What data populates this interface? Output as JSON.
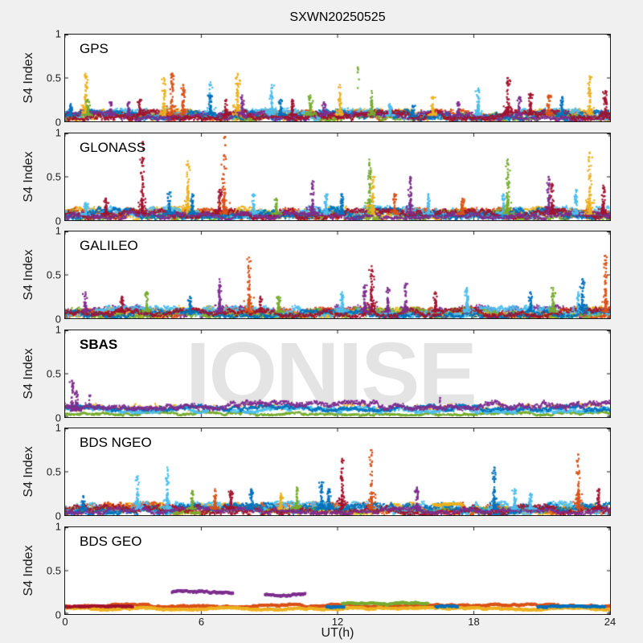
{
  "title": "SXWN20250525",
  "watermark": "IONISE",
  "background_color": "#f0f0f0",
  "axis_color": "#1a1a1a",
  "palette": {
    "blue": "#0072BD",
    "orange": "#D95319",
    "yellow": "#EDB120",
    "purple": "#7E2F8E",
    "green": "#77AC30",
    "cyan": "#4DBEEE",
    "darkred": "#A2142F"
  },
  "chart_data": {
    "type": "scatter",
    "title": "SXWN20250525",
    "x": {
      "label": "UT(h)",
      "range": [
        0,
        24
      ],
      "ticks": [
        0,
        6,
        12,
        18,
        24
      ]
    },
    "y": {
      "label": "S4 Index",
      "range": [
        0,
        1
      ],
      "ticks": [
        0,
        0.5,
        1
      ]
    },
    "grid": false,
    "legend": "none",
    "panels": [
      {
        "label": "GPS",
        "bold": false,
        "baseline": [
          [
            "yellow",
            0.07,
            0.05,
            0.15
          ],
          [
            "orange",
            0.065,
            0.05,
            0.2
          ],
          [
            "green",
            0.05,
            0.035,
            0.3
          ],
          [
            "cyan",
            0.08,
            0.05,
            0.15
          ],
          [
            "blue",
            0.07,
            0.045,
            0.2
          ],
          [
            "purple",
            0.06,
            0.04,
            0.3
          ],
          [
            "darkred",
            0.07,
            0.045,
            0.2
          ]
        ],
        "spikes": [
          [
            0.25,
            0.2,
            "blue"
          ],
          [
            0.9,
            0.55,
            "yellow"
          ],
          [
            1.0,
            0.25,
            "green"
          ],
          [
            2.0,
            0.22,
            "purple"
          ],
          [
            2.8,
            0.22,
            "purple"
          ],
          [
            3.3,
            0.25,
            "darkred"
          ],
          [
            4.35,
            0.5,
            "yellow"
          ],
          [
            4.7,
            0.55,
            "orange"
          ],
          [
            5.2,
            0.42,
            "orange"
          ],
          [
            6.4,
            0.45,
            "cyan"
          ],
          [
            6.4,
            0.3,
            "blue"
          ],
          [
            7.1,
            0.25,
            "darkred"
          ],
          [
            7.6,
            0.55,
            "yellow"
          ],
          [
            7.8,
            0.3,
            "purple"
          ],
          [
            9.1,
            0.42,
            "cyan"
          ],
          [
            9.5,
            0.25,
            "blue"
          ],
          [
            10.0,
            0.25,
            "darkred"
          ],
          [
            10.8,
            0.3,
            "green"
          ],
          [
            11.4,
            0.22,
            "purple"
          ],
          [
            12.1,
            0.42,
            "yellow"
          ],
          [
            13.5,
            0.35,
            "green"
          ],
          [
            14.3,
            0.2,
            "cyan"
          ],
          [
            15.3,
            0.18,
            "blue"
          ],
          [
            16.2,
            0.28,
            "yellow"
          ],
          [
            17.3,
            0.22,
            "purple"
          ],
          [
            18.2,
            0.38,
            "cyan"
          ],
          [
            19.5,
            0.5,
            "darkred"
          ],
          [
            20.0,
            0.28,
            "purple"
          ],
          [
            20.5,
            0.32,
            "darkred"
          ],
          [
            21.3,
            0.3,
            "orange"
          ],
          [
            21.9,
            0.28,
            "blue"
          ],
          [
            23.1,
            0.52,
            "yellow"
          ],
          [
            23.8,
            0.35,
            "darkred"
          ]
        ],
        "dots": [
          [
            12.9,
            0.62,
            "green"
          ]
        ],
        "segments": []
      },
      {
        "label": "GLONASS",
        "bold": false,
        "baseline": [
          [
            "yellow",
            0.08,
            0.055,
            0.15
          ],
          [
            "orange",
            0.07,
            0.05,
            0.15
          ],
          [
            "green",
            0.06,
            0.045,
            0.25
          ],
          [
            "cyan",
            0.085,
            0.055,
            0.15
          ],
          [
            "blue",
            0.08,
            0.05,
            0.15
          ],
          [
            "darkred",
            0.07,
            0.045,
            0.2
          ],
          [
            "purple",
            0.05,
            0.035,
            0.3
          ]
        ],
        "spikes": [
          [
            0.9,
            0.2,
            "cyan"
          ],
          [
            1.8,
            0.25,
            "darkred"
          ],
          [
            3.4,
            0.72,
            "darkred"
          ],
          [
            4.6,
            0.32,
            "blue"
          ],
          [
            5.4,
            0.68,
            "yellow"
          ],
          [
            5.6,
            0.3,
            "blue"
          ],
          [
            6.8,
            0.35,
            "darkred"
          ],
          [
            7.0,
            0.75,
            "orange"
          ],
          [
            8.3,
            0.3,
            "cyan"
          ],
          [
            9.3,
            0.25,
            "green"
          ],
          [
            10.9,
            0.45,
            "purple"
          ],
          [
            11.5,
            0.3,
            "cyan"
          ],
          [
            12.2,
            0.3,
            "blue"
          ],
          [
            13.4,
            0.7,
            "green"
          ],
          [
            13.55,
            0.5,
            "yellow"
          ],
          [
            14.5,
            0.3,
            "orange"
          ],
          [
            15.2,
            0.5,
            "purple"
          ],
          [
            16.0,
            0.3,
            "cyan"
          ],
          [
            17.5,
            0.25,
            "orange"
          ],
          [
            19.3,
            0.3,
            "cyan"
          ],
          [
            19.5,
            0.7,
            "green"
          ],
          [
            21.3,
            0.5,
            "purple"
          ],
          [
            21.45,
            0.42,
            "darkred"
          ],
          [
            22.5,
            0.35,
            "cyan"
          ],
          [
            23.1,
            0.78,
            "yellow"
          ],
          [
            23.7,
            0.4,
            "darkred"
          ]
        ],
        "dots": [
          [
            3.45,
            0.9,
            "darkred"
          ],
          [
            7.05,
            0.96,
            "orange"
          ]
        ],
        "segments": []
      },
      {
        "label": "GALILEO",
        "bold": false,
        "baseline": [
          [
            "purple",
            0.075,
            0.055,
            0.12
          ],
          [
            "orange",
            0.06,
            0.045,
            0.2
          ],
          [
            "yellow",
            0.07,
            0.05,
            0.18
          ],
          [
            "green",
            0.06,
            0.045,
            0.2
          ],
          [
            "cyan",
            0.075,
            0.05,
            0.18
          ],
          [
            "blue",
            0.05,
            0.035,
            0.3
          ],
          [
            "darkred",
            0.06,
            0.04,
            0.25
          ]
        ],
        "spikes": [
          [
            0.9,
            0.3,
            "purple"
          ],
          [
            2.5,
            0.25,
            "darkred"
          ],
          [
            3.6,
            0.3,
            "green"
          ],
          [
            5.5,
            0.25,
            "blue"
          ],
          [
            6.8,
            0.45,
            "purple"
          ],
          [
            8.1,
            0.7,
            "orange"
          ],
          [
            8.6,
            0.25,
            "darkred"
          ],
          [
            9.4,
            0.25,
            "green"
          ],
          [
            12.2,
            0.3,
            "cyan"
          ],
          [
            13.5,
            0.6,
            "darkred"
          ],
          [
            13.2,
            0.38,
            "purple"
          ],
          [
            14.2,
            0.35,
            "purple"
          ],
          [
            15.0,
            0.4,
            "purple"
          ],
          [
            16.3,
            0.3,
            "darkred"
          ],
          [
            17.7,
            0.35,
            "cyan"
          ],
          [
            20.5,
            0.3,
            "blue"
          ],
          [
            21.5,
            0.35,
            "green"
          ],
          [
            22.6,
            0.3,
            "cyan"
          ],
          [
            22.8,
            0.45,
            "blue"
          ],
          [
            23.8,
            0.72,
            "orange"
          ]
        ],
        "dots": [],
        "segments": []
      },
      {
        "label": "SBAS",
        "bold": true,
        "baseline": [
          [
            "yellow",
            0.115,
            0.03,
            0.75
          ],
          [
            "green",
            0.04,
            0.018,
            0.2
          ],
          [
            "cyan",
            0.085,
            0.03,
            0.1
          ],
          [
            "blue",
            0.105,
            0.03,
            0.15
          ],
          [
            "purple",
            0.135,
            0.04,
            0.12
          ]
        ],
        "spikes": [
          [
            0.3,
            0.42,
            "purple"
          ],
          [
            0.5,
            0.3,
            "purple"
          ]
        ],
        "dots": [
          [
            1.1,
            0.25,
            "purple"
          ],
          [
            16.5,
            0.22,
            "purple"
          ]
        ],
        "segments": []
      },
      {
        "label": "BDS NGEO",
        "bold": false,
        "baseline": [
          [
            "yellow",
            0.075,
            0.05,
            0.15
          ],
          [
            "orange",
            0.08,
            0.05,
            0.15
          ],
          [
            "green",
            0.05,
            0.03,
            0.35
          ],
          [
            "cyan",
            0.08,
            0.055,
            0.15
          ],
          [
            "blue",
            0.07,
            0.05,
            0.2
          ],
          [
            "darkred",
            0.06,
            0.045,
            0.25
          ],
          [
            "purple",
            0.05,
            0.03,
            0.4
          ]
        ],
        "spikes": [
          [
            0.8,
            0.22,
            "blue"
          ],
          [
            3.2,
            0.45,
            "cyan"
          ],
          [
            4.5,
            0.55,
            "cyan"
          ],
          [
            5.6,
            0.28,
            "green"
          ],
          [
            6.6,
            0.3,
            "orange"
          ],
          [
            7.3,
            0.28,
            "darkred"
          ],
          [
            8.2,
            0.3,
            "blue"
          ],
          [
            9.5,
            0.25,
            "yellow"
          ],
          [
            10.2,
            0.32,
            "green"
          ],
          [
            11.3,
            0.38,
            "blue"
          ],
          [
            11.6,
            0.3,
            "blue"
          ],
          [
            12.2,
            0.65,
            "darkred"
          ],
          [
            13.5,
            0.75,
            "orange"
          ],
          [
            15.5,
            0.32,
            "purple"
          ],
          [
            18.9,
            0.55,
            "blue"
          ],
          [
            19.8,
            0.3,
            "cyan"
          ],
          [
            20.5,
            0.25,
            "cyan"
          ],
          [
            22.6,
            0.7,
            "orange"
          ],
          [
            23.5,
            0.3,
            "darkred"
          ]
        ],
        "dots": [],
        "segments": [
          [
            16.2,
            17.5,
            0.12,
            "yellow",
            0.015
          ]
        ]
      },
      {
        "label": "BDS GEO",
        "bold": false,
        "baseline": [],
        "spikes": [],
        "dots": [],
        "segments": [
          [
            0,
            24,
            0.1,
            "orange",
            0.018
          ],
          [
            0,
            24,
            0.065,
            "yellow",
            0.012
          ],
          [
            0,
            3,
            0.09,
            "darkred",
            0.008
          ],
          [
            4.7,
            7.4,
            0.25,
            "purple",
            0.022
          ],
          [
            8.8,
            10.6,
            0.23,
            "purple",
            0.018
          ],
          [
            12.2,
            16.0,
            0.125,
            "green",
            0.012
          ],
          [
            11.5,
            12.3,
            0.09,
            "blue",
            0.008
          ],
          [
            16.3,
            17.3,
            0.09,
            "blue",
            0.008
          ],
          [
            20.8,
            23.8,
            0.09,
            "blue",
            0.008
          ]
        ]
      }
    ]
  }
}
